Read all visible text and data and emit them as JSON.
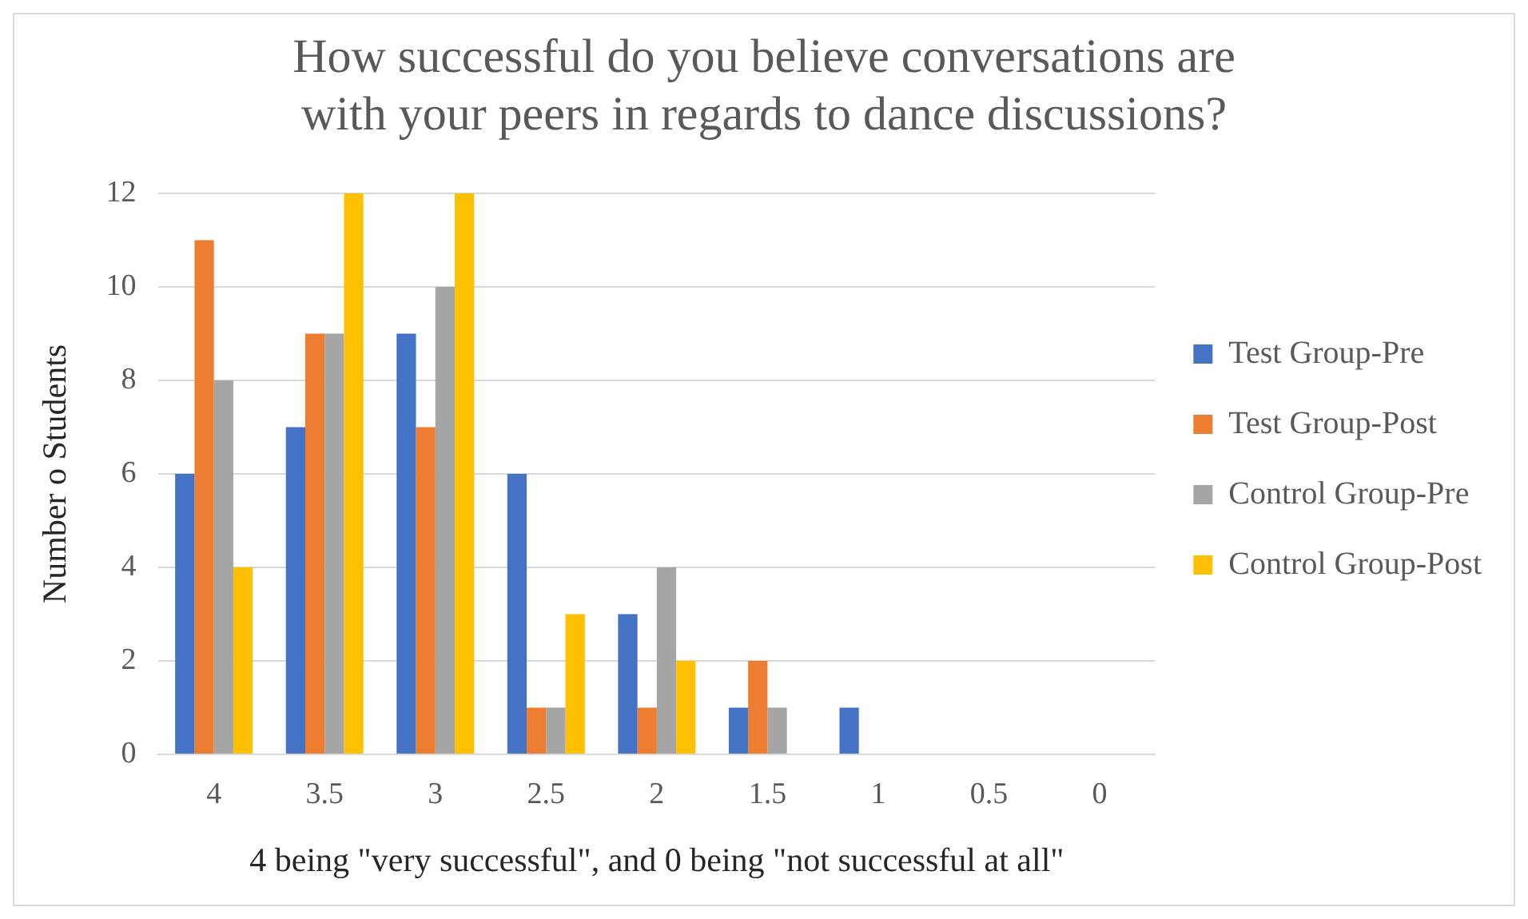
{
  "chart_data": {
    "type": "bar",
    "title": "How successful do you believe conversations are\nwith your peers in regards to dance discussions?",
    "xlabel": "4 being \"very successful\", and 0 being \"not successful at all\"",
    "ylabel": "Number o Students",
    "categories": [
      "4",
      "3.5",
      "3",
      "2.5",
      "2",
      "1.5",
      "1",
      "0.5",
      "0"
    ],
    "series": [
      {
        "name": "Test Group-Pre",
        "color": "#4472c4",
        "values": [
          6,
          7,
          9,
          6,
          3,
          1,
          1,
          0,
          0
        ]
      },
      {
        "name": "Test Group-Post",
        "color": "#ed7d31",
        "values": [
          11,
          9,
          7,
          1,
          1,
          2,
          0,
          0,
          0
        ]
      },
      {
        "name": "Control Group-Pre",
        "color": "#a5a5a5",
        "values": [
          8,
          9,
          10,
          1,
          4,
          1,
          0,
          0,
          0
        ]
      },
      {
        "name": "Control Group-Post",
        "color": "#ffc000",
        "values": [
          4,
          12,
          12,
          3,
          2,
          0,
          0,
          0,
          0
        ]
      }
    ],
    "ylim": [
      0,
      12
    ],
    "yticks": [
      0,
      2,
      4,
      6,
      8,
      10,
      12
    ],
    "grid": "y",
    "legend": "right"
  }
}
